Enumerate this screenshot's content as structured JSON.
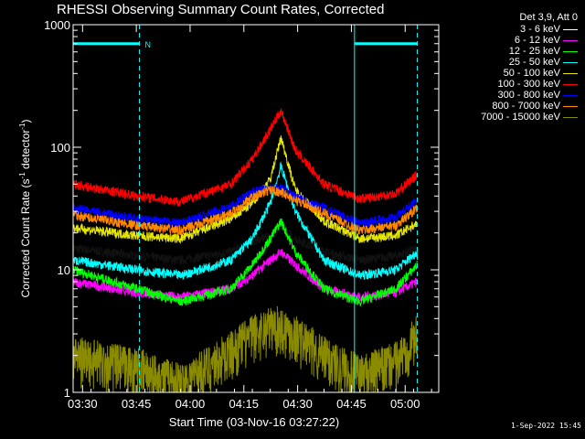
{
  "chart_data": {
    "type": "line",
    "title": "RHESSI Observing Summary Count Rates, Corrected",
    "xlabel": "Start Time (03-Nov-16 03:27:22)",
    "ylabel_parts": [
      "Corrected Count Rate (s",
      "-1",
      " detector",
      "-1",
      ")"
    ],
    "yscale": "log",
    "ylim": [
      1,
      1000
    ],
    "xlim_minutes": [
      0,
      102
    ],
    "x_unit": "minutes after 03:27:22",
    "x_ticks": [
      {
        "minute": 2.63,
        "label": "03:30"
      },
      {
        "minute": 17.63,
        "label": "03:45"
      },
      {
        "minute": 32.63,
        "label": "04:00"
      },
      {
        "minute": 47.63,
        "label": "04:15"
      },
      {
        "minute": 62.63,
        "label": "04:30"
      },
      {
        "minute": 77.63,
        "label": "04:45"
      },
      {
        "minute": 92.63,
        "label": "05:00"
      }
    ],
    "y_ticks": [
      {
        "value": 1,
        "label": "1"
      },
      {
        "value": 10,
        "label": "10"
      },
      {
        "value": 100,
        "label": "100"
      },
      {
        "value": 1000,
        "label": "1000"
      }
    ],
    "annotation": {
      "label": "N"
    },
    "legend_title": "Det 3,9, Att 0",
    "series": [
      {
        "name": "3 - 6 keV",
        "color": "#000000",
        "x": [
          0,
          18,
          30,
          44,
          50,
          55,
          58,
          62,
          70,
          80,
          90,
          96
        ],
        "y": [
          15,
          13,
          12,
          14,
          17,
          19,
          22,
          18,
          14,
          12,
          13,
          15
        ]
      },
      {
        "name": "6 - 12 keV",
        "color": "#ff00ff",
        "x": [
          0,
          18,
          30,
          44,
          50,
          55,
          58,
          62,
          70,
          80,
          90,
          96
        ],
        "y": [
          8,
          6.5,
          6,
          7,
          9,
          12,
          14,
          11,
          7,
          6,
          6.5,
          8
        ]
      },
      {
        "name": "12 - 25 keV",
        "color": "#00ff00",
        "x": [
          0,
          18,
          30,
          44,
          50,
          55,
          58,
          62,
          70,
          80,
          90,
          96
        ],
        "y": [
          10,
          7,
          5.5,
          7,
          11,
          18,
          25,
          14,
          7,
          5.5,
          7,
          11
        ]
      },
      {
        "name": "25 - 50 keV",
        "color": "#00ffff",
        "x": [
          0,
          18,
          30,
          44,
          50,
          55,
          58,
          62,
          70,
          80,
          90,
          96
        ],
        "y": [
          12,
          10,
          9,
          12,
          18,
          35,
          70,
          30,
          12,
          9,
          10,
          14
        ]
      },
      {
        "name": "50 - 100 keV",
        "color": "#e6e600",
        "x": [
          0,
          18,
          30,
          44,
          50,
          55,
          58,
          62,
          70,
          80,
          90,
          96
        ],
        "y": [
          22,
          19,
          18,
          26,
          35,
          55,
          120,
          45,
          25,
          18,
          19,
          24
        ]
      },
      {
        "name": "100 - 300 keV",
        "color": "#ff0000",
        "x": [
          0,
          18,
          30,
          44,
          50,
          55,
          58,
          62,
          70,
          80,
          90,
          96
        ],
        "y": [
          50,
          40,
          36,
          50,
          80,
          140,
          200,
          95,
          50,
          38,
          42,
          60
        ]
      },
      {
        "name": "300 - 800 keV",
        "color": "#0000ff",
        "x": [
          0,
          18,
          30,
          44,
          50,
          55,
          58,
          62,
          70,
          80,
          90,
          96
        ],
        "y": [
          32,
          26,
          24,
          33,
          43,
          47,
          46,
          40,
          32,
          24,
          27,
          37
        ]
      },
      {
        "name": "800 - 7000 keV",
        "color": "#ff8800",
        "x": [
          0,
          18,
          30,
          44,
          50,
          55,
          58,
          62,
          70,
          80,
          90,
          96
        ],
        "y": [
          28,
          23,
          21,
          29,
          39,
          45,
          43,
          37,
          29,
          21,
          23,
          32
        ]
      },
      {
        "name": "7000 - 15000 keV",
        "color": "#8b8b00",
        "x": [
          0,
          18,
          30,
          44,
          50,
          55,
          58,
          62,
          70,
          80,
          90,
          96
        ],
        "y": [
          2,
          1.6,
          1.2,
          2.2,
          3,
          3.5,
          3.5,
          3,
          2,
          1.4,
          1.8,
          3
        ]
      }
    ],
    "grid": false,
    "legend_position": "right"
  },
  "footer_text": "1-Sep-2022 15:45"
}
